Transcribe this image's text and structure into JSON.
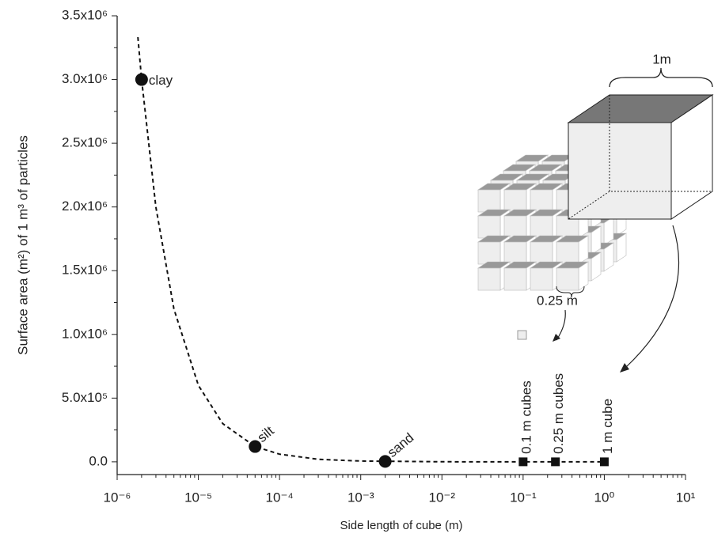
{
  "chart_data": {
    "type": "scatter",
    "xlabel": "Side length of cube (m)",
    "ylabel": "Surface area (m²) of 1 m³ of particles",
    "xlog": true,
    "xlim": [
      1e-06,
      10
    ],
    "ylim": [
      -100000,
      3500000
    ],
    "xticks": [
      {
        "value": 1e-06,
        "label": "10⁻⁶"
      },
      {
        "value": 1e-05,
        "label": "10⁻⁵"
      },
      {
        "value": 0.0001,
        "label": "10⁻⁴"
      },
      {
        "value": 0.001,
        "label": "10⁻³"
      },
      {
        "value": 0.01,
        "label": "10⁻²"
      },
      {
        "value": 0.1,
        "label": "10⁻¹"
      },
      {
        "value": 1,
        "label": "10⁰"
      },
      {
        "value": 10,
        "label": "10¹"
      }
    ],
    "yticks": [
      {
        "value": 0,
        "label": "0.0"
      },
      {
        "value": 500000,
        "label": "5.0x10⁵"
      },
      {
        "value": 1000000,
        "label": "1.0x10⁶"
      },
      {
        "value": 1500000,
        "label": "1.5x10⁶"
      },
      {
        "value": 2000000,
        "label": "2.0x10⁶"
      },
      {
        "value": 2500000,
        "label": "2.5x10⁶"
      },
      {
        "value": 3000000,
        "label": "3.0x10⁶"
      },
      {
        "value": 3500000,
        "label": "3.5x10⁶"
      }
    ],
    "x": [
      2e-06,
      5e-05,
      0.002,
      0.1,
      0.25,
      1
    ],
    "values": [
      3000000,
      120000,
      3000,
      60,
      24,
      6
    ],
    "point_labels": [
      "clay",
      "silt",
      "sand",
      "0.1 m cubes",
      "0.25 m cubes",
      "1 m cube"
    ],
    "markers": [
      "circle",
      "circle",
      "circle",
      "square",
      "square",
      "square"
    ],
    "color": "#111111",
    "curve": {
      "x": [
        1.8e-06,
        2e-06,
        3e-06,
        5e-06,
        1e-05,
        2e-05,
        5e-05,
        0.0001,
        0.0003,
        0.001,
        0.01,
        0.1,
        1
      ],
      "values": [
        3333333,
        3000000,
        2000000,
        1200000,
        600000,
        300000,
        120000,
        60000,
        20000,
        6000,
        600,
        60,
        6
      ]
    },
    "annotations": [
      "1m",
      "0.25 m"
    ]
  }
}
